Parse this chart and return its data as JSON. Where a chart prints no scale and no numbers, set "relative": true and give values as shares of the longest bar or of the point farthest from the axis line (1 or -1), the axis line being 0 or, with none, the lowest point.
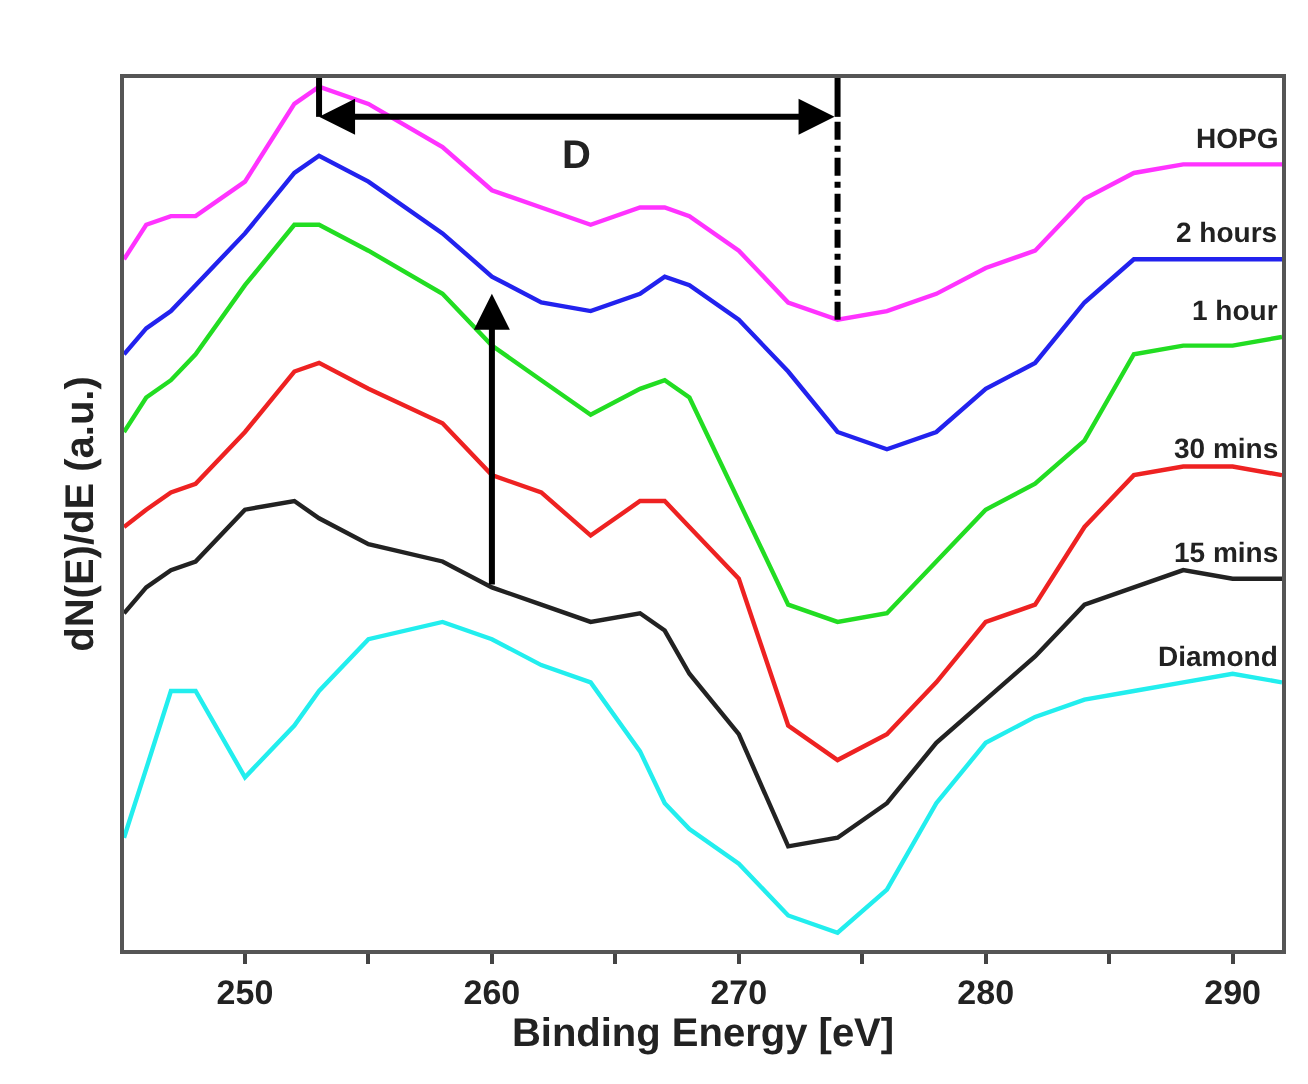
{
  "chart_data": {
    "type": "line",
    "relative": true,
    "xlabel": "Binding Energy [eV]",
    "ylabel": "dN(E)/dE (a.u.)",
    "x": [
      245.1,
      246,
      247,
      248,
      250,
      252,
      253,
      255,
      258,
      260,
      262,
      264,
      266,
      267,
      268,
      270,
      272,
      274,
      276,
      278,
      280,
      282,
      284,
      286,
      288,
      290,
      292
    ],
    "xlim": [
      245.1,
      292.0
    ],
    "xticks": [
      250,
      {
        "value": 255,
        "label": null
      },
      260,
      {
        "value": 265,
        "label": null
      },
      270,
      {
        "value": 275,
        "label": null
      },
      280,
      {
        "value": 285,
        "label": null
      },
      290
    ],
    "series": [
      {
        "name": "HOPG",
        "color": "#ff33ff",
        "values": [
          0.8,
          0.84,
          0.85,
          0.85,
          0.89,
          0.98,
          1.0,
          0.98,
          0.93,
          0.88,
          0.86,
          0.84,
          0.86,
          0.86,
          0.85,
          0.81,
          0.75,
          0.73,
          0.74,
          0.76,
          0.79,
          0.81,
          0.87,
          0.9,
          0.91,
          0.91,
          0.91
        ]
      },
      {
        "name": "2 hours",
        "color": "#2222ee",
        "values": [
          0.69,
          0.72,
          0.74,
          0.77,
          0.83,
          0.9,
          0.92,
          0.89,
          0.83,
          0.78,
          0.75,
          0.74,
          0.76,
          0.78,
          0.77,
          0.73,
          0.67,
          0.6,
          0.58,
          0.6,
          0.65,
          0.68,
          0.75,
          0.8,
          0.8,
          0.8,
          0.8
        ]
      },
      {
        "name": "1 hour",
        "color": "#22dd22",
        "values": [
          0.6,
          0.64,
          0.66,
          0.69,
          0.77,
          0.84,
          0.84,
          0.81,
          0.76,
          0.7,
          0.66,
          0.62,
          0.65,
          0.66,
          0.64,
          0.52,
          0.4,
          0.38,
          0.39,
          0.45,
          0.51,
          0.54,
          0.59,
          0.69,
          0.7,
          0.7,
          0.71
        ]
      },
      {
        "name": "30 mins",
        "color": "#ee2222",
        "values": [
          0.49,
          0.51,
          0.53,
          0.54,
          0.6,
          0.67,
          0.68,
          0.65,
          0.61,
          0.55,
          0.53,
          0.48,
          0.52,
          0.52,
          0.49,
          0.43,
          0.26,
          0.22,
          0.25,
          0.31,
          0.38,
          0.4,
          0.49,
          0.55,
          0.56,
          0.56,
          0.55
        ]
      },
      {
        "name": "15 mins",
        "color": "#222222",
        "values": [
          0.39,
          0.42,
          0.44,
          0.45,
          0.51,
          0.52,
          0.5,
          0.47,
          0.45,
          0.42,
          0.4,
          0.38,
          0.39,
          0.37,
          0.32,
          0.25,
          0.12,
          0.13,
          0.17,
          0.24,
          0.29,
          0.34,
          0.4,
          0.42,
          0.44,
          0.43,
          0.43
        ]
      },
      {
        "name": "Diamond",
        "color": "#22eeee",
        "values": [
          0.13,
          0.21,
          0.3,
          0.3,
          0.2,
          0.26,
          0.3,
          0.36,
          0.38,
          0.36,
          0.33,
          0.31,
          0.23,
          0.17,
          0.14,
          0.1,
          0.04,
          0.02,
          0.07,
          0.17,
          0.24,
          0.27,
          0.29,
          0.3,
          0.31,
          0.32,
          0.31
        ]
      }
    ],
    "annotations": [
      "D"
    ],
    "ref_lines": [
      {
        "axis": "x",
        "value": 274,
        "line_style": "dashdot",
        "color": "#000000"
      }
    ],
    "legend": false,
    "grid": false,
    "marker": "none",
    "line_style": "solid"
  }
}
